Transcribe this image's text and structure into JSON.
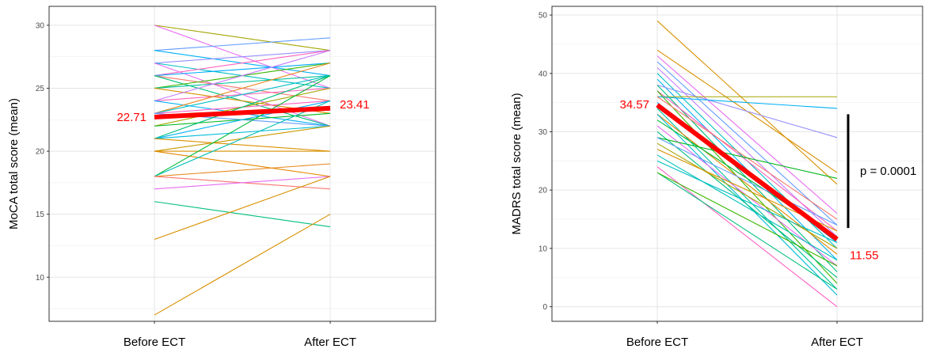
{
  "chart_data": [
    {
      "type": "line",
      "panel": "left",
      "ylabel": "MoCA total score (mean)",
      "categories": [
        "Before ECT",
        "After ECT"
      ],
      "ylim": [
        6.5,
        31.5
      ],
      "yticks": [
        10,
        15,
        20,
        25,
        30
      ],
      "grid": true,
      "mean_series": {
        "values": [
          22.71,
          23.41
        ],
        "labels": [
          "22.71",
          "23.41"
        ],
        "color": "#ff0000"
      },
      "series": [
        {
          "values": [
            30,
            28
          ],
          "color": "#a3a500"
        },
        {
          "values": [
            30,
            25
          ],
          "color": "#e76bf3"
        },
        {
          "values": [
            28,
            29
          ],
          "color": "#619cff"
        },
        {
          "values": [
            28,
            26
          ],
          "color": "#00b0f6"
        },
        {
          "values": [
            27,
            28
          ],
          "color": "#9590ff"
        },
        {
          "values": [
            27,
            25
          ],
          "color": "#00bfc4"
        },
        {
          "values": [
            27,
            22
          ],
          "color": "#e76bf3"
        },
        {
          "values": [
            26,
            28
          ],
          "color": "#ff62bc"
        },
        {
          "values": [
            26,
            27
          ],
          "color": "#00a9ff"
        },
        {
          "values": [
            26,
            24
          ],
          "color": "#f8766d"
        },
        {
          "values": [
            26,
            22
          ],
          "color": "#00bf7d"
        },
        {
          "values": [
            25,
            27
          ],
          "color": "#39b600"
        },
        {
          "values": [
            25,
            26
          ],
          "color": "#00c19a"
        },
        {
          "values": [
            25,
            23
          ],
          "color": "#d89000"
        },
        {
          "values": [
            24,
            28
          ],
          "color": "#c77cff"
        },
        {
          "values": [
            24,
            25
          ],
          "color": "#ff62bc"
        },
        {
          "values": [
            24,
            22
          ],
          "color": "#00b0f6"
        },
        {
          "values": [
            23,
            27
          ],
          "color": "#e7861b"
        },
        {
          "values": [
            23,
            26
          ],
          "color": "#00bfc4"
        },
        {
          "values": [
            23,
            24
          ],
          "color": "#ff61c3"
        },
        {
          "values": [
            23,
            22
          ],
          "color": "#619cff"
        },
        {
          "values": [
            22,
            25
          ],
          "color": "#a3a500"
        },
        {
          "values": [
            22,
            23
          ],
          "color": "#00b81f"
        },
        {
          "values": [
            21,
            26
          ],
          "color": "#00bf7d"
        },
        {
          "values": [
            21,
            24
          ],
          "color": "#00b0f6"
        },
        {
          "values": [
            21,
            22
          ],
          "color": "#00bcd8"
        },
        {
          "values": [
            21,
            20
          ],
          "color": "#d89000"
        },
        {
          "values": [
            20,
            22
          ],
          "color": "#c99800"
        },
        {
          "values": [
            20,
            20
          ],
          "color": "#d89000"
        },
        {
          "values": [
            20,
            18
          ],
          "color": "#e58700"
        },
        {
          "values": [
            18,
            26
          ],
          "color": "#00ba38"
        },
        {
          "values": [
            18,
            24
          ],
          "color": "#00c0b8"
        },
        {
          "values": [
            18,
            19
          ],
          "color": "#e7861b"
        },
        {
          "values": [
            18,
            17
          ],
          "color": "#f8766d"
        },
        {
          "values": [
            17,
            18
          ],
          "color": "#e76bf3"
        },
        {
          "values": [
            16,
            14
          ],
          "color": "#00bf7d"
        },
        {
          "values": [
            13,
            18
          ],
          "color": "#d89000"
        },
        {
          "values": [
            7,
            15
          ],
          "color": "#d89000"
        }
      ]
    },
    {
      "type": "line",
      "panel": "right",
      "ylabel": "MADRS total score (mean)",
      "categories": [
        "Before ECT",
        "After ECT"
      ],
      "ylim": [
        -2.5,
        51.5
      ],
      "yticks": [
        0,
        10,
        20,
        30,
        40,
        50
      ],
      "grid": true,
      "mean_series": {
        "values": [
          34.57,
          11.55
        ],
        "labels": [
          "34.57",
          "11.55"
        ],
        "color": "#ff0000"
      },
      "annotation": {
        "text": "p = 0.0001",
        "bracket_y": [
          13.5,
          33
        ]
      },
      "series": [
        {
          "values": [
            49,
            21
          ],
          "color": "#d89000"
        },
        {
          "values": [
            44,
            23
          ],
          "color": "#d89000"
        },
        {
          "values": [
            43,
            16
          ],
          "color": "#e76bf3"
        },
        {
          "values": [
            42,
            14
          ],
          "color": "#619cff"
        },
        {
          "values": [
            41,
            12
          ],
          "color": "#c77cff"
        },
        {
          "values": [
            40,
            10
          ],
          "color": "#00bfc4"
        },
        {
          "values": [
            39,
            8
          ],
          "color": "#00b0f6"
        },
        {
          "values": [
            38,
            29
          ],
          "color": "#9590ff"
        },
        {
          "values": [
            38,
            6
          ],
          "color": "#00bf7d"
        },
        {
          "values": [
            37,
            13
          ],
          "color": "#ff62bc"
        },
        {
          "values": [
            37,
            4
          ],
          "color": "#39b600"
        },
        {
          "values": [
            36,
            36
          ],
          "color": "#a3a500"
        },
        {
          "values": [
            36,
            34
          ],
          "color": "#00b0f6"
        },
        {
          "values": [
            36,
            15
          ],
          "color": "#f8766d"
        },
        {
          "values": [
            35,
            11
          ],
          "color": "#00a9ff"
        },
        {
          "values": [
            34,
            3
          ],
          "color": "#00c19a"
        },
        {
          "values": [
            33,
            9
          ],
          "color": "#e58700"
        },
        {
          "values": [
            33,
            2
          ],
          "color": "#00bcd8"
        },
        {
          "values": [
            32,
            12
          ],
          "color": "#00ba38"
        },
        {
          "values": [
            31,
            7
          ],
          "color": "#e76bf3"
        },
        {
          "values": [
            30,
            5
          ],
          "color": "#00bf7d"
        },
        {
          "values": [
            29,
            22
          ],
          "color": "#00b81f"
        },
        {
          "values": [
            29,
            14
          ],
          "color": "#619cff"
        },
        {
          "values": [
            28,
            10
          ],
          "color": "#a3a500"
        },
        {
          "values": [
            27,
            13
          ],
          "color": "#d89000"
        },
        {
          "values": [
            26,
            8
          ],
          "color": "#00c0b8"
        },
        {
          "values": [
            25,
            11
          ],
          "color": "#00bfc4"
        },
        {
          "values": [
            24,
            0
          ],
          "color": "#ff61c3"
        },
        {
          "values": [
            23,
            3
          ],
          "color": "#00bf7d"
        },
        {
          "values": [
            23,
            7
          ],
          "color": "#39b600"
        }
      ]
    }
  ]
}
